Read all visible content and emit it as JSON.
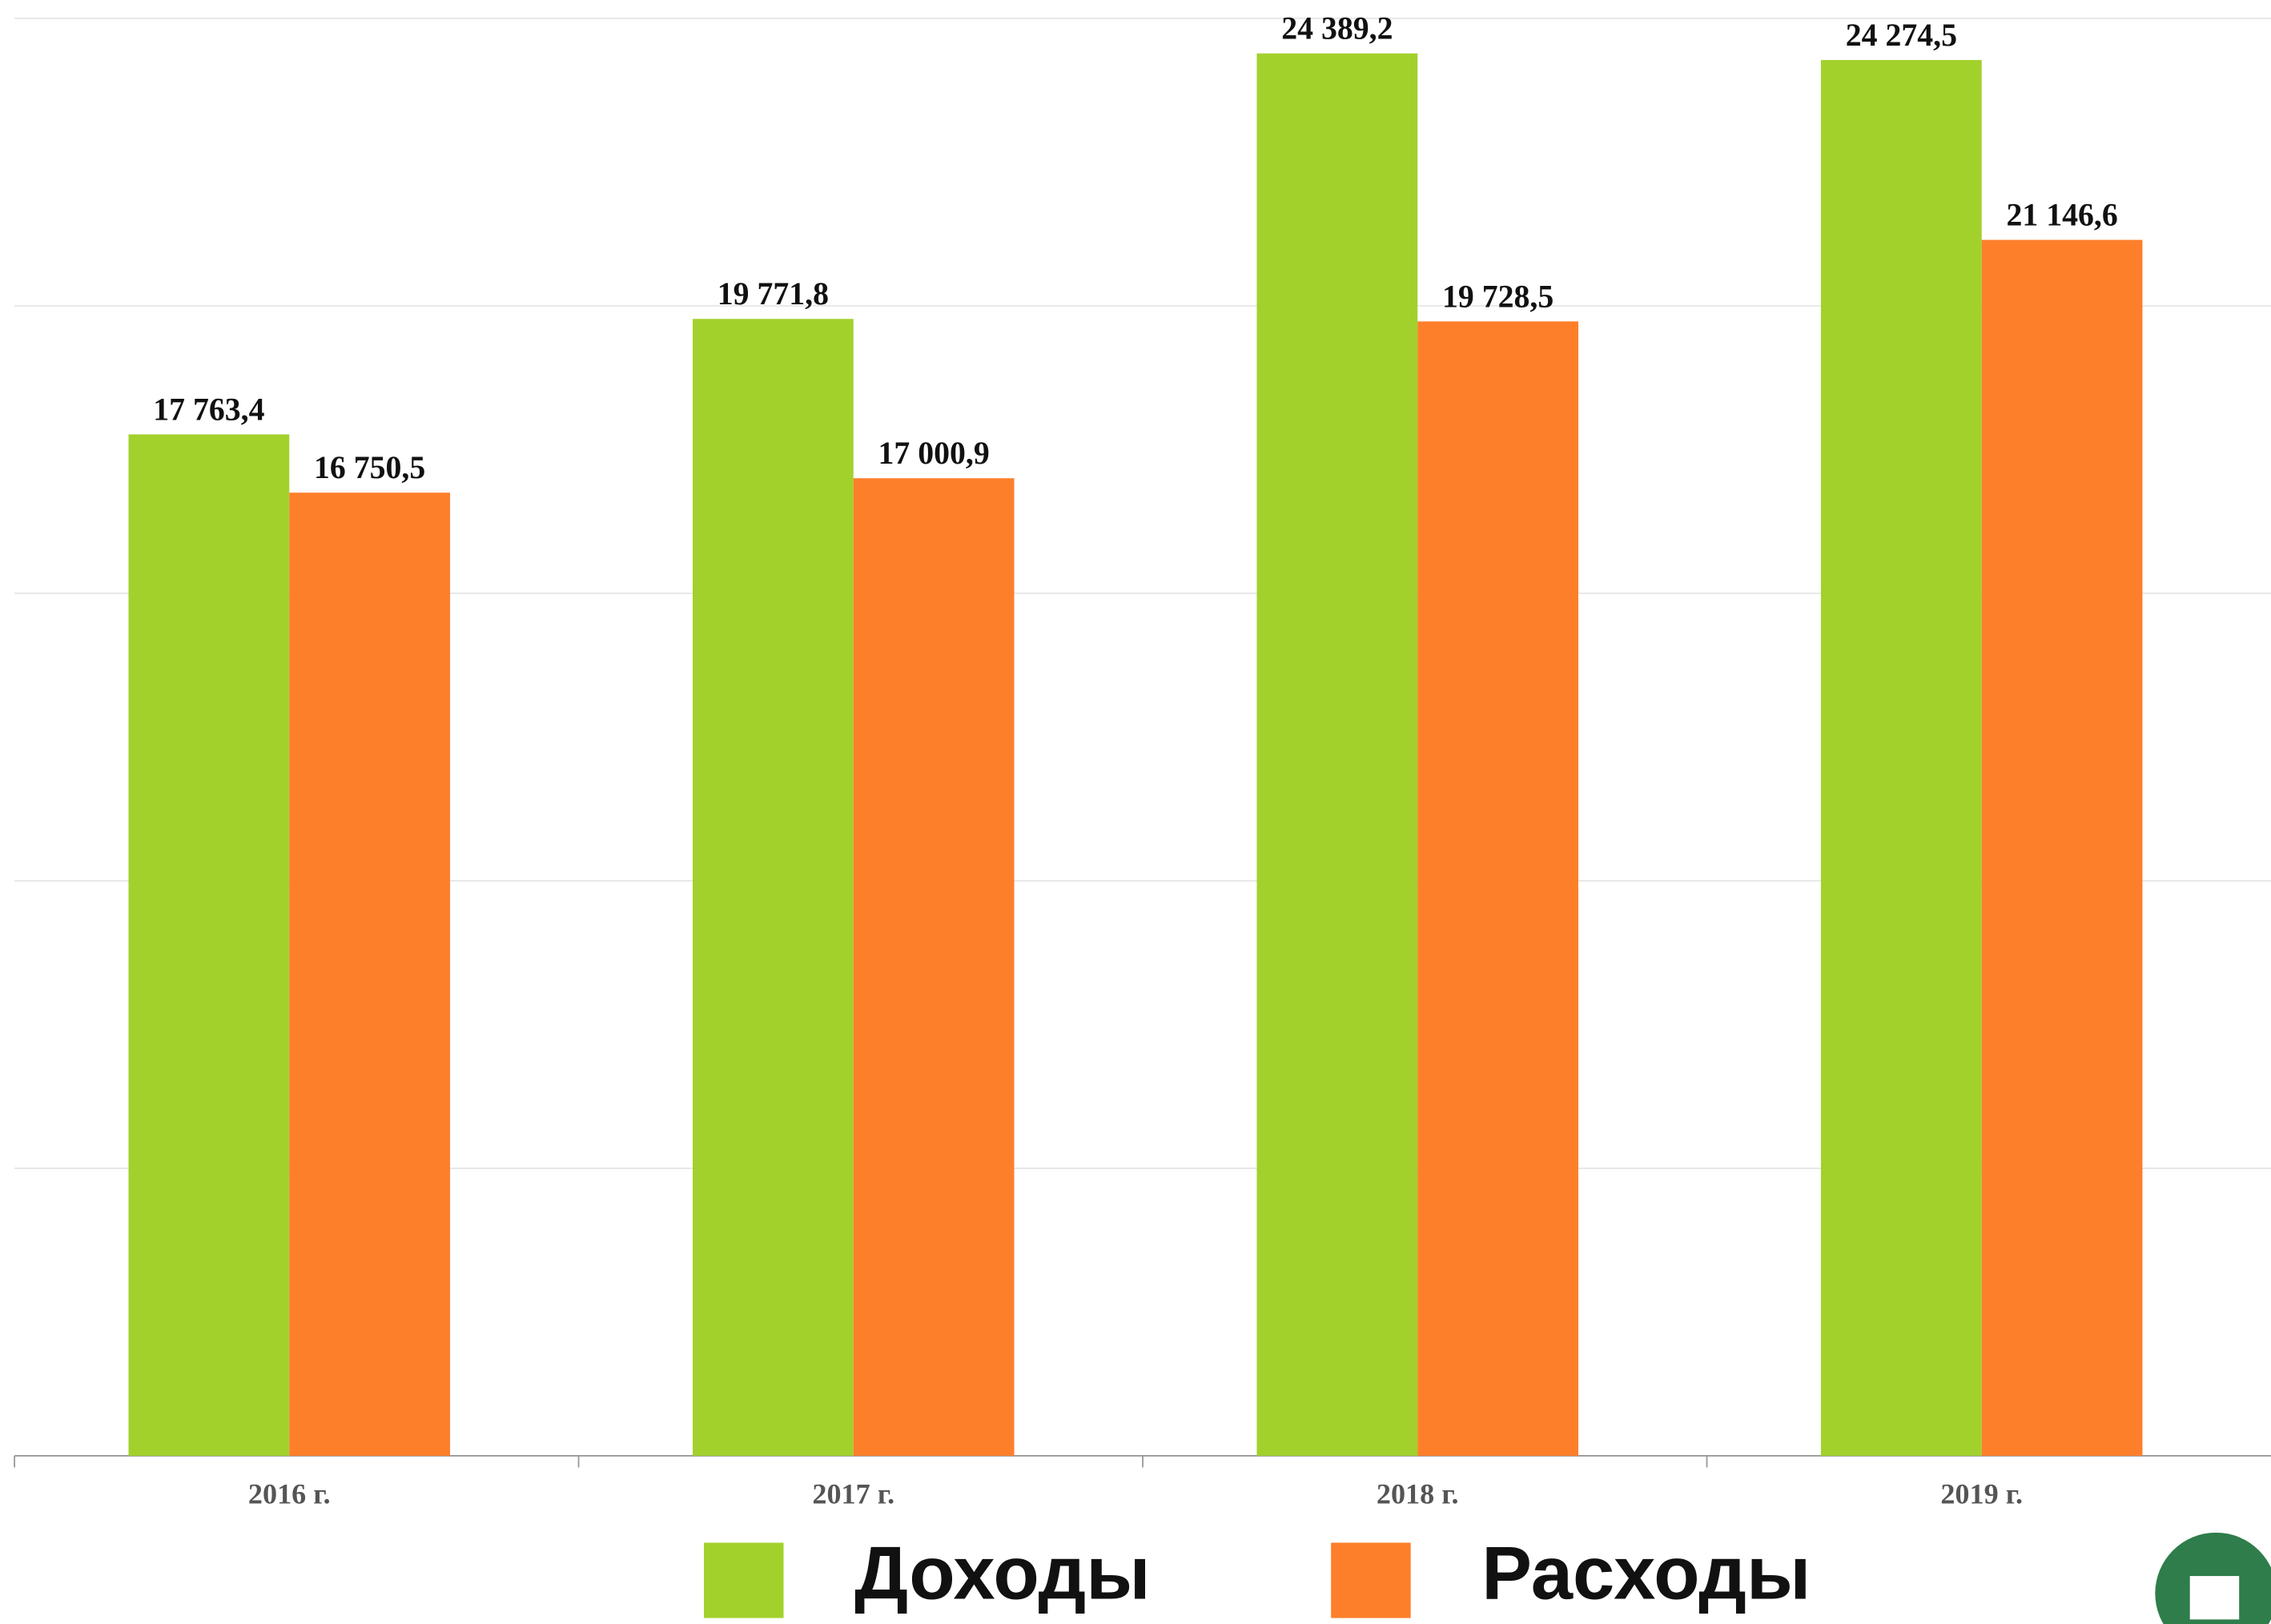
{
  "chart_data": {
    "type": "bar",
    "categories": [
      "2016 г.",
      "2017 г.",
      "2018 г.",
      "2019 г."
    ],
    "series": [
      {
        "name": "Доходы",
        "color": "#a2d12c",
        "values": [
          17763.4,
          19771.8,
          24389.2,
          24274.5
        ],
        "value_labels": [
          "17 763,4",
          "19 771,8",
          "24 389,2",
          "24 274,5"
        ]
      },
      {
        "name": "Расходы",
        "color": "#fe7f2a",
        "values": [
          16750.5,
          17000.9,
          19728.5,
          21146.6
        ],
        "value_labels": [
          "16 750,5",
          "17 000,9",
          "19 728,5",
          "21 146,6"
        ]
      }
    ],
    "ylim": [
      0,
      25000
    ],
    "yticks": [
      0,
      5000,
      10000,
      15000,
      20000,
      25000
    ],
    "grid": true,
    "legend": "bottom"
  }
}
